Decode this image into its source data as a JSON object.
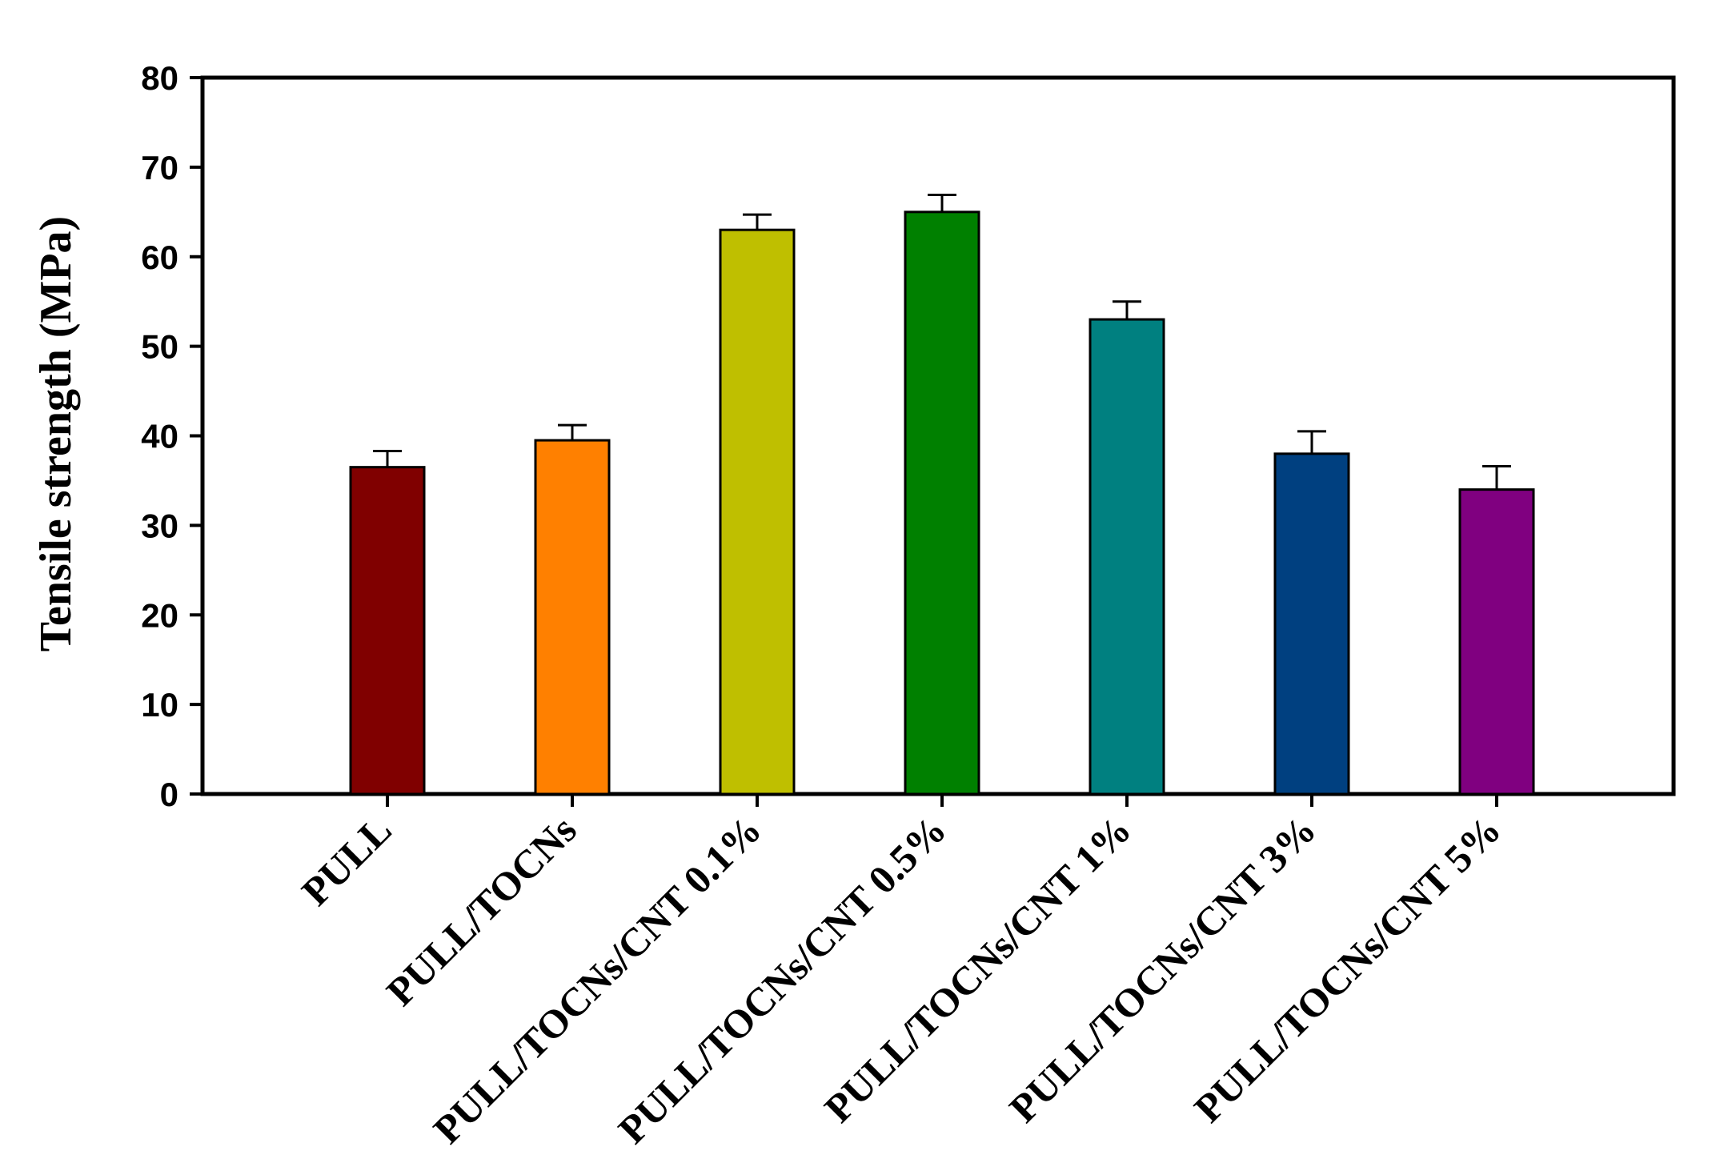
{
  "chart_data": {
    "type": "bar",
    "title": "",
    "xlabel": "",
    "ylabel": "Tensile strength (MPa)",
    "ylim": [
      0,
      80
    ],
    "yticks": [
      0,
      10,
      20,
      30,
      40,
      50,
      60,
      70,
      80
    ],
    "yticks_labels": [
      "0",
      "10",
      "20",
      "30",
      "40",
      "50",
      "60",
      "70",
      "80"
    ],
    "grid": false,
    "legend": "none",
    "categories": [
      "PULL",
      "PULL/TOCNs",
      "PULL/TOCNs/CNT 0.1%",
      "PULL/TOCNs/CNT 0.5%",
      "PULL/TOCNs/CNT 1%",
      "PULL/TOCNs/CNT 3%",
      "PULL/TOCNs/CNT 5%"
    ],
    "values": [
      36.5,
      39.5,
      63,
      65,
      53,
      38,
      34
    ],
    "errors": [
      1.8,
      1.7,
      1.7,
      1.9,
      2.0,
      2.5,
      2.6
    ],
    "colors": [
      "#800000",
      "#ff8000",
      "#bfbf00",
      "#008000",
      "#008080",
      "#004080",
      "#800080"
    ]
  }
}
